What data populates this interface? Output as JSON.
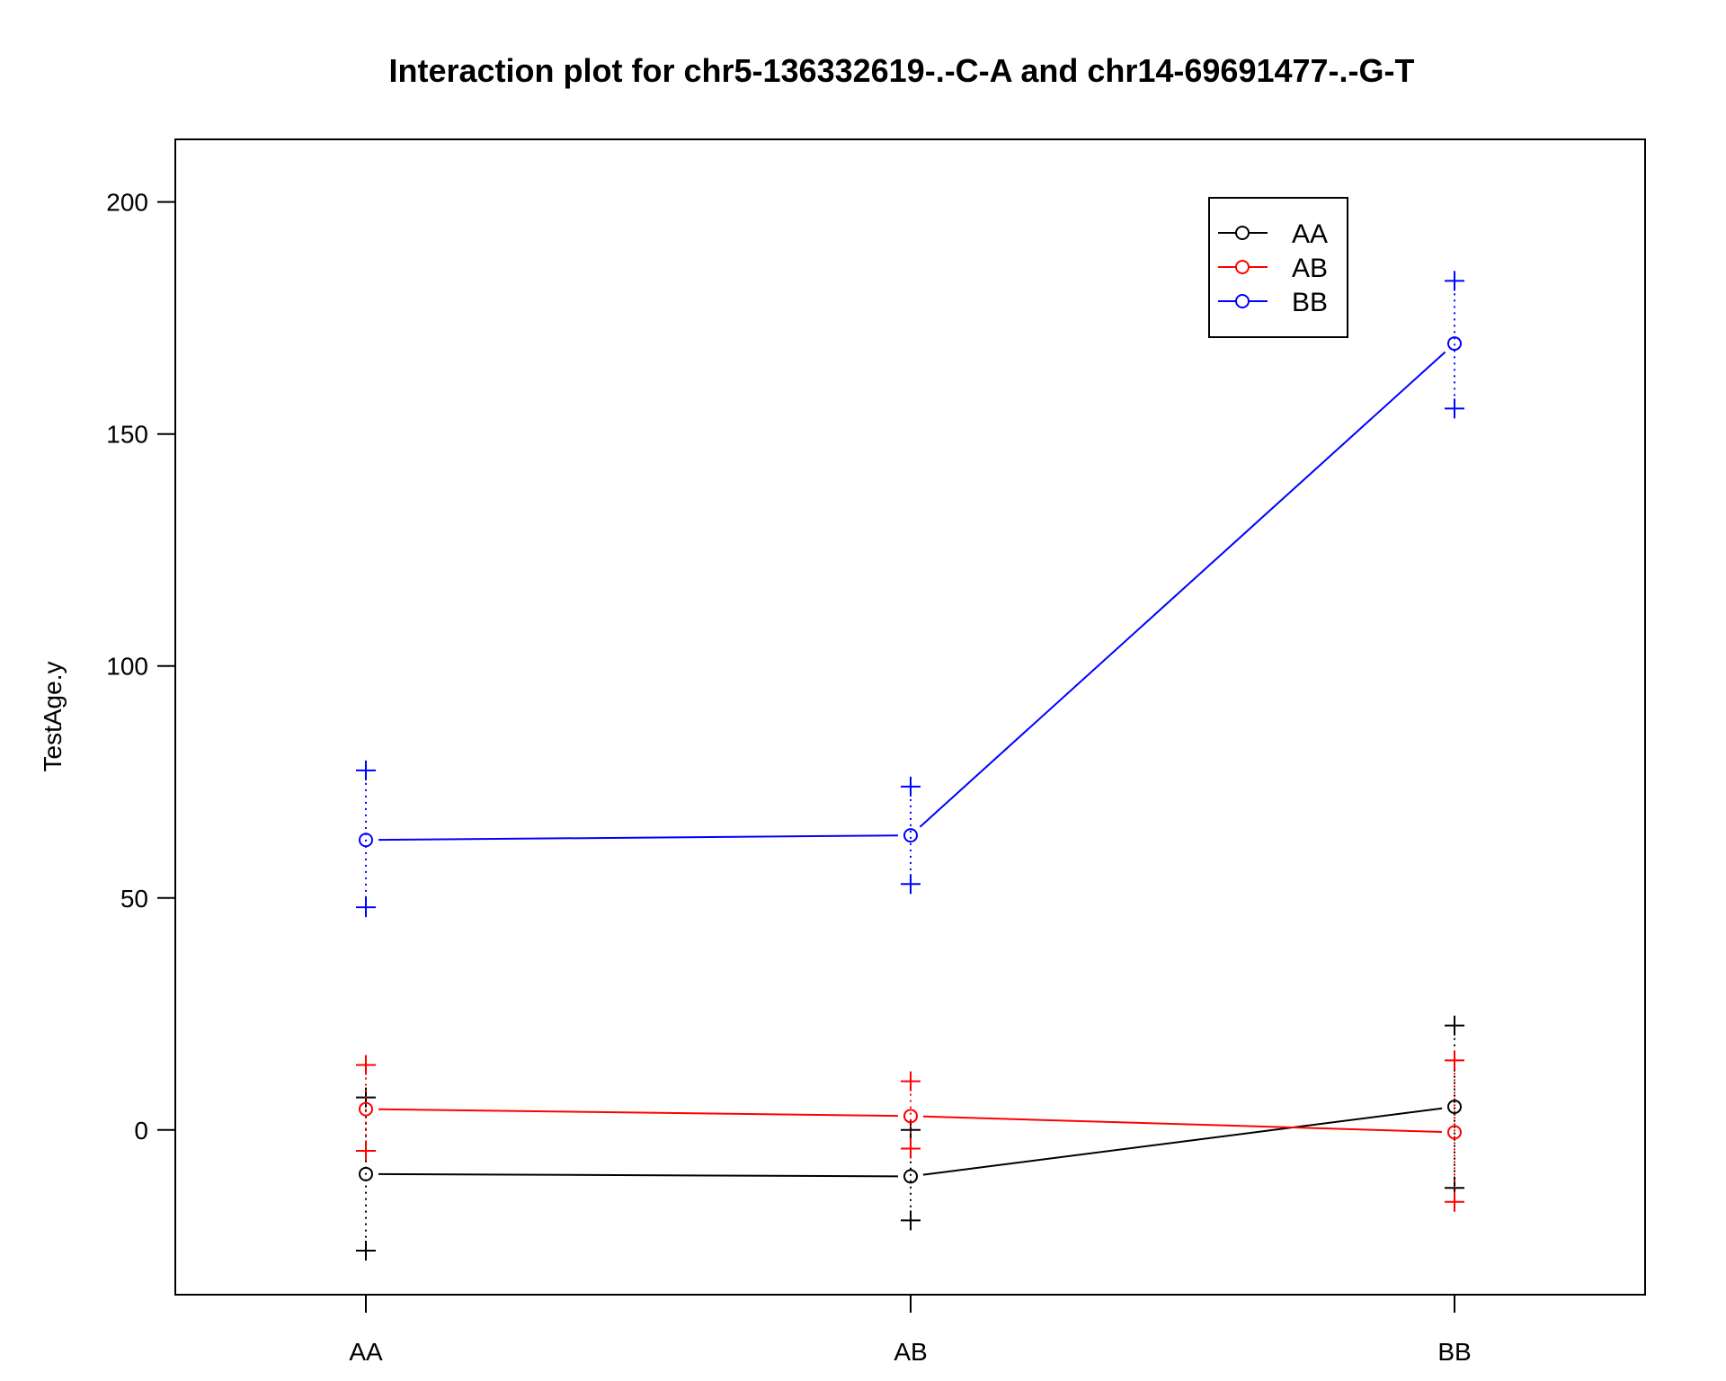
{
  "chart_data": {
    "type": "line",
    "title": "Interaction plot for chr5-136332619-.-C-A and chr14-69691477-.-G-T",
    "xlabel": "",
    "ylabel": "TestAge.y",
    "categories": [
      "AA",
      "AB",
      "BB"
    ],
    "ylim": [
      -35.5,
      213.5
    ],
    "yticks": [
      0,
      50,
      100,
      150,
      200
    ],
    "grid": false,
    "legend_position": "top-right",
    "series": [
      {
        "name": "AA",
        "color": "#000000",
        "values": [
          -9.5,
          -10,
          5
        ],
        "upper": [
          7,
          0,
          22.5
        ],
        "lower": [
          -26,
          -19.5,
          -12.5
        ]
      },
      {
        "name": "AB",
        "color": "#ff0000",
        "values": [
          4.5,
          3,
          -0.5
        ],
        "upper": [
          14,
          10.5,
          15
        ],
        "lower": [
          -4.5,
          -4,
          -15.5
        ]
      },
      {
        "name": "BB",
        "color": "#0000ff",
        "values": [
          62.5,
          63.5,
          169.5
        ],
        "upper": [
          77.5,
          74,
          183
        ],
        "lower": [
          48,
          53,
          155.5
        ]
      }
    ]
  }
}
